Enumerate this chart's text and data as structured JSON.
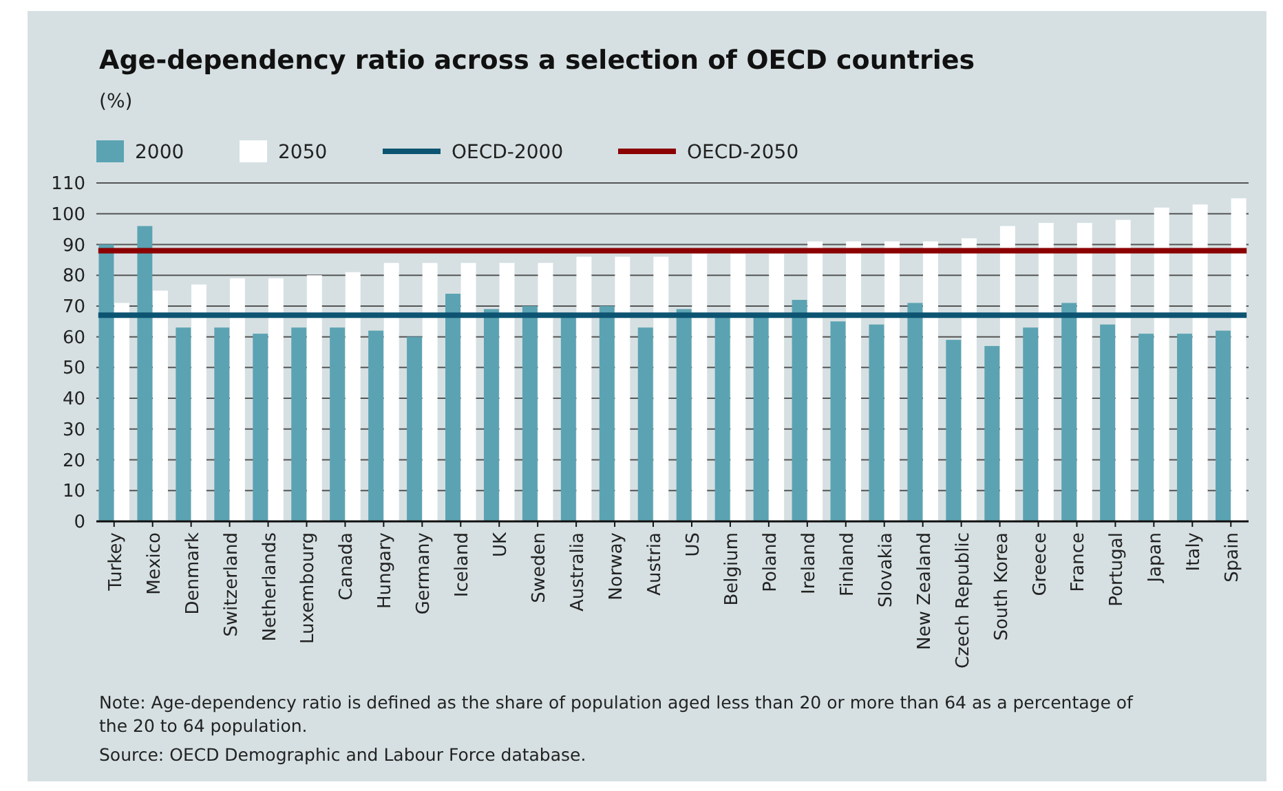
{
  "chart_data": {
    "type": "bar",
    "title": "Age-dependency ratio across a selection of OECD countries",
    "subtitle": "(%)",
    "categories": [
      "Turkey",
      "Mexico",
      "Denmark",
      "Switzerland",
      "Netherlands",
      "Luxembourg",
      "Canada",
      "Hungary",
      "Germany",
      "Iceland",
      "UK",
      "Sweden",
      "Australia",
      "Norway",
      "Austria",
      "US",
      "Belgium",
      "Poland",
      "Ireland",
      "Finland",
      "Slovakia",
      "New Zealand",
      "Czech Republic",
      "South Korea",
      "Greece",
      "France",
      "Portugal",
      "Japan",
      "Italy",
      "Spain"
    ],
    "series": [
      {
        "name": "2000",
        "color": "#5ba3b3",
        "values": [
          90,
          96,
          63,
          63,
          61,
          63,
          63,
          62,
          60,
          74,
          69,
          70,
          67,
          70,
          63,
          69,
          67,
          67,
          72,
          65,
          64,
          71,
          59,
          57,
          63,
          71,
          64,
          61,
          61,
          62
        ]
      },
      {
        "name": "2050",
        "color": "#ffffff",
        "values": [
          71,
          75,
          77,
          79,
          79,
          80,
          81,
          84,
          84,
          84,
          84,
          84,
          86,
          86,
          86,
          87,
          87,
          87,
          91,
          91,
          91,
          91,
          92,
          96,
          97,
          97,
          98,
          102,
          103,
          105
        ]
      }
    ],
    "ref_lines": [
      {
        "axis": "y",
        "value": 67,
        "label": "OECD-2000",
        "color": "#0d5472"
      },
      {
        "axis": "y",
        "value": 88,
        "label": "OECD-2050",
        "color": "#8b0000"
      }
    ],
    "ylim": [
      0,
      110
    ],
    "yticks": [
      0,
      10,
      20,
      30,
      40,
      50,
      60,
      70,
      80,
      90,
      100,
      110
    ],
    "grid": "y",
    "legend": "top left",
    "annotations": [
      "Note: Age-dependency ratio is defined as the share of population aged less than 20 or more than 64 as a percentage of the 20 to 64 population.",
      "Source: OECD Demographic and Labour Force database."
    ]
  }
}
